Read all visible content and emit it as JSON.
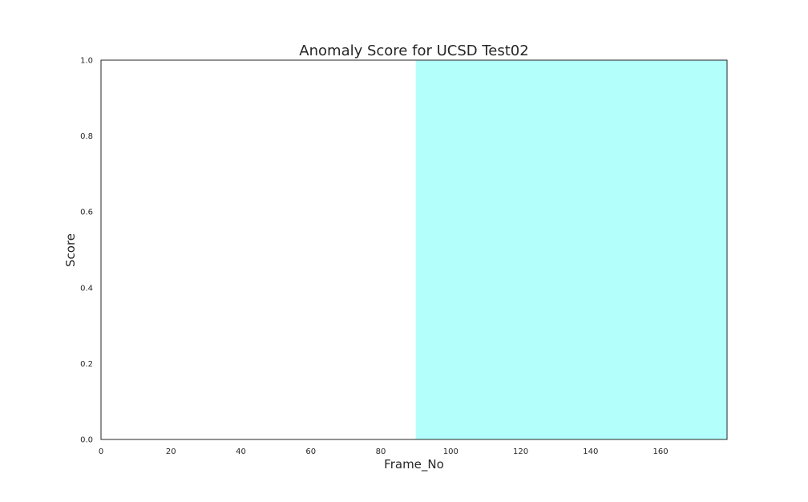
{
  "chart_data": {
    "type": "line",
    "title": "Anomaly Score for UCSD Test02",
    "xlabel": "Frame_No",
    "ylabel": "Score",
    "xlim": [
      0,
      179
    ],
    "ylim": [
      0.0,
      1.0
    ],
    "x_ticks": [
      0,
      20,
      40,
      60,
      80,
      100,
      120,
      140,
      160
    ],
    "x_tick_labels": [
      "0",
      "20",
      "40",
      "60",
      "80",
      "100",
      "120",
      "140",
      "160"
    ],
    "y_ticks": [
      0.0,
      0.2,
      0.4,
      0.6,
      0.8,
      1.0
    ],
    "y_tick_labels": [
      "0.0",
      "0.2",
      "0.4",
      "0.6",
      "0.8",
      "1.0"
    ],
    "grid": false,
    "series": [],
    "shaded_regions": [
      {
        "x_start": 90,
        "x_end": 179,
        "color": "#b3fffc"
      }
    ]
  }
}
